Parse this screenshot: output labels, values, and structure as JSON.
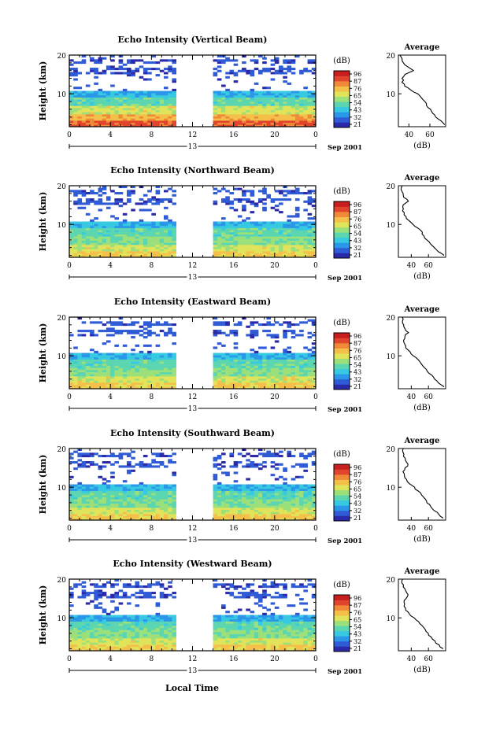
{
  "figure": {
    "bottom_xlabel": "Local Time"
  },
  "colorbar": {
    "unit": "(dB)",
    "ticks": [
      "96",
      "87",
      "76",
      "65",
      "54",
      "43",
      "32",
      "21"
    ],
    "colors": [
      "#2a2aa8",
      "#2f5bd6",
      "#2b97e8",
      "#37c9e2",
      "#5bd6b0",
      "#9be07a",
      "#e0e45a",
      "#f4c04a",
      "#f08a38",
      "#e0442c",
      "#c81e1e"
    ]
  },
  "panels": [
    {
      "title": "Echo Intensity (Vertical Beam)",
      "ylabel": "Height (km)",
      "date_label": "Sep 2001",
      "day_label": "13",
      "x_ticks": [
        "0",
        "4",
        "8",
        "12",
        "16",
        "20",
        "0"
      ],
      "y_ticks": [
        "20",
        "10"
      ],
      "profile": {
        "title": "Average",
        "xlabel": "(dB)",
        "x_ticks": [
          "40",
          "60"
        ],
        "y_ticks": [
          "20",
          "10"
        ]
      }
    },
    {
      "title": "Echo Intensity (Northward Beam)",
      "ylabel": "Height (km)",
      "date_label": "Sep 2001",
      "day_label": "13",
      "x_ticks": [
        "0",
        "4",
        "8",
        "12",
        "16",
        "20",
        "0"
      ],
      "y_ticks": [
        "20",
        "10"
      ],
      "profile": {
        "title": "Average",
        "xlabel": "(dB)",
        "x_ticks": [
          "40",
          "60"
        ],
        "y_ticks": [
          "20",
          "10"
        ]
      }
    },
    {
      "title": "Echo Intensity (Eastward Beam)",
      "ylabel": "Height (km)",
      "date_label": "Sep 2001",
      "day_label": "13",
      "x_ticks": [
        "0",
        "4",
        "8",
        "12",
        "16",
        "20",
        "0"
      ],
      "y_ticks": [
        "20",
        "10"
      ],
      "profile": {
        "title": "Average",
        "xlabel": "(dB)",
        "x_ticks": [
          "40",
          "60"
        ],
        "y_ticks": [
          "20",
          "10"
        ]
      }
    },
    {
      "title": "Echo Intensity (Southward Beam)",
      "ylabel": "Height (km)",
      "date_label": "Sep 2001",
      "day_label": "13",
      "x_ticks": [
        "0",
        "4",
        "8",
        "12",
        "16",
        "20",
        "0"
      ],
      "y_ticks": [
        "20",
        "10"
      ],
      "profile": {
        "title": "Average",
        "xlabel": "(dB)",
        "x_ticks": [
          "40",
          "60"
        ],
        "y_ticks": [
          "20",
          "10"
        ]
      }
    },
    {
      "title": "Echo Intensity (Westward Beam)",
      "ylabel": "Height (km)",
      "date_label": "Sep 2001",
      "day_label": "13",
      "x_ticks": [
        "0",
        "4",
        "8",
        "12",
        "16",
        "20",
        "0"
      ],
      "y_ticks": [
        "20",
        "10"
      ],
      "profile": {
        "title": "Average",
        "xlabel": "(dB)",
        "x_ticks": [
          "40",
          "60"
        ],
        "y_ticks": [
          "20",
          "10"
        ]
      }
    }
  ],
  "chart_data": [
    {
      "type": "heatmap",
      "title": "Echo Intensity (Vertical Beam)",
      "xlabel": "Local Time",
      "ylabel": "Height (km)",
      "xlim": [
        0,
        24
      ],
      "ylim": [
        1.5,
        20
      ],
      "zlim": [
        21,
        96
      ],
      "data_gap_hours": [
        10.4,
        14.2
      ],
      "description_values": {
        "height_km": [
          2,
          4,
          6,
          8,
          10,
          12,
          14,
          16,
          18,
          20
        ],
        "typical_db": [
          82,
          72,
          60,
          52,
          45,
          30,
          32,
          36,
          34,
          28
        ]
      },
      "average_profile": {
        "xlim": [
          30,
          75
        ],
        "height_km": [
          2,
          3,
          4,
          5,
          6,
          7,
          8,
          9,
          10,
          11,
          12,
          13,
          14,
          15,
          16,
          17,
          18,
          19,
          20
        ],
        "db": [
          74,
          70,
          66,
          63,
          60,
          57,
          55,
          52,
          48,
          42,
          36,
          34,
          34,
          36,
          44,
          38,
          34,
          33,
          32
        ]
      }
    },
    {
      "type": "heatmap",
      "title": "Echo Intensity (Northward Beam)",
      "xlabel": "Local Time",
      "ylabel": "Height (km)",
      "xlim": [
        0,
        24
      ],
      "ylim": [
        1.5,
        20
      ],
      "zlim": [
        21,
        96
      ],
      "data_gap_hours": [
        10.4,
        14.2
      ],
      "average_profile": {
        "xlim": [
          25,
          80
        ],
        "height_km": [
          2,
          3,
          4,
          5,
          6,
          7,
          8,
          9,
          10,
          11,
          12,
          13,
          14,
          15,
          16,
          17,
          18,
          19,
          20
        ],
        "db": [
          78,
          72,
          66,
          62,
          58,
          55,
          52,
          48,
          42,
          37,
          33,
          31,
          30,
          31,
          36,
          32,
          30,
          29,
          29
        ]
      }
    },
    {
      "type": "heatmap",
      "title": "Echo Intensity (Eastward Beam)",
      "xlabel": "Local Time",
      "ylabel": "Height (km)",
      "xlim": [
        0,
        24
      ],
      "ylim": [
        1.5,
        20
      ],
      "zlim": [
        21,
        96
      ],
      "data_gap_hours": [
        10.4,
        14.2
      ],
      "average_profile": {
        "xlim": [
          25,
          80
        ],
        "height_km": [
          2,
          3,
          4,
          5,
          6,
          7,
          8,
          9,
          10,
          11,
          12,
          13,
          14,
          15,
          16,
          17,
          18,
          19,
          20
        ],
        "db": [
          78,
          72,
          67,
          63,
          59,
          55,
          52,
          48,
          43,
          38,
          34,
          32,
          31,
          32,
          36,
          33,
          31,
          30,
          30
        ]
      }
    },
    {
      "type": "heatmap",
      "title": "Echo Intensity (Southward Beam)",
      "xlabel": "Local Time",
      "ylabel": "Height (km)",
      "xlim": [
        0,
        24
      ],
      "ylim": [
        1.5,
        20
      ],
      "zlim": [
        21,
        96
      ],
      "data_gap_hours": [
        10.4,
        14.2
      ],
      "average_profile": {
        "xlim": [
          25,
          80
        ],
        "height_km": [
          2,
          3,
          4,
          5,
          6,
          7,
          8,
          9,
          10,
          11,
          12,
          13,
          14,
          15,
          16,
          17,
          18,
          19,
          20
        ],
        "db": [
          77,
          72,
          67,
          63,
          59,
          56,
          52,
          48,
          43,
          38,
          34,
          32,
          31,
          33,
          37,
          33,
          31,
          30,
          30
        ]
      }
    },
    {
      "type": "heatmap",
      "title": "Echo Intensity (Westward Beam)",
      "xlabel": "Local Time",
      "ylabel": "Height (km)",
      "xlim": [
        0,
        24
      ],
      "ylim": [
        1.5,
        20
      ],
      "zlim": [
        21,
        96
      ],
      "data_gap_hours": [
        10.4,
        14.2
      ],
      "average_profile": {
        "xlim": [
          25,
          80
        ],
        "height_km": [
          2,
          3,
          4,
          5,
          6,
          7,
          8,
          9,
          10,
          11,
          12,
          13,
          14,
          15,
          16,
          17,
          18,
          19,
          20
        ],
        "db": [
          77,
          72,
          67,
          63,
          59,
          56,
          52,
          48,
          43,
          38,
          34,
          32,
          31,
          33,
          37,
          33,
          31,
          30,
          30
        ]
      }
    }
  ]
}
